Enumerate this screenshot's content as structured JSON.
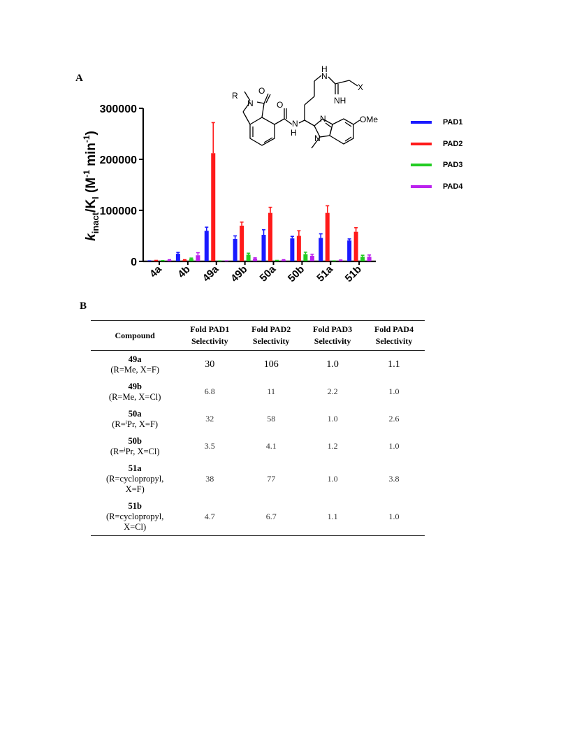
{
  "panels": {
    "a": "A",
    "b": "B"
  },
  "chart_data": {
    "type": "bar",
    "categories": [
      "4a",
      "4b",
      "49a",
      "49b",
      "50a",
      "50b",
      "51a",
      "51b"
    ],
    "ylabel": "kinact/KI (M-1 min-1)",
    "ylabel_parts": {
      "k": "k",
      "inact": "inact",
      "slash": "/K",
      "i": "I",
      "open": " (M",
      "exp1": "-1",
      "min": " min",
      "exp2": "-1",
      "close": ")"
    },
    "ylim": [
      0,
      300000
    ],
    "yticks": [
      0,
      100000,
      200000,
      300000
    ],
    "ytick_labels": [
      "0",
      "100000",
      "200000",
      "300000"
    ],
    "legend_position": "right",
    "series": [
      {
        "name": "PAD1",
        "color": "#1a1aff",
        "values": [
          800,
          15000,
          60000,
          44000,
          52000,
          45000,
          46000,
          41000
        ],
        "errors": [
          300,
          2500,
          7000,
          6000,
          10000,
          4000,
          8000,
          3000
        ]
      },
      {
        "name": "PAD2",
        "color": "#ff1a1a",
        "values": [
          1500,
          2500,
          212000,
          70000,
          95000,
          50000,
          95000,
          58000
        ],
        "errors": [
          500,
          800,
          60000,
          7000,
          11000,
          10000,
          14000,
          8000
        ]
      },
      {
        "name": "PAD3",
        "color": "#22cc22",
        "values": [
          1200,
          5000,
          700,
          13000,
          1500,
          14000,
          700,
          9000
        ],
        "errors": [
          400,
          1500,
          300,
          3000,
          500,
          4000,
          300,
          3000
        ]
      },
      {
        "name": "PAD4",
        "color": "#bb22ee",
        "values": [
          2500,
          12000,
          700,
          5500,
          2500,
          11000,
          2000,
          9000
        ],
        "errors": [
          800,
          5000,
          300,
          1500,
          800,
          3000,
          700,
          3500
        ]
      }
    ]
  },
  "structure": {
    "labels": {
      "r": "R",
      "o1": "O",
      "o2": "O",
      "n_ring": "N",
      "nh_amide_n": "N",
      "nh_amide_h": "H",
      "n_imid_top": "N",
      "n_imid_bottom": "N",
      "ome": "OMe",
      "nh_top_n": "N",
      "nh_top_h": "H",
      "x": "X",
      "nh_imine": "NH"
    }
  },
  "table": {
    "headers": [
      {
        "line1": "Compound",
        "line2": ""
      },
      {
        "line1": "Fold PAD1",
        "line2": "Selectivity"
      },
      {
        "line1": "Fold PAD2",
        "line2": "Selectivity"
      },
      {
        "line1": "Fold PAD3",
        "line2": "Selectivity"
      },
      {
        "line1": "Fold PAD4",
        "line2": "Selectivity"
      }
    ],
    "rows": [
      {
        "name": "49a",
        "desc1": "(R=Me, X=F)",
        "desc2": "",
        "values": [
          "30",
          "106",
          "1.0",
          "1.1"
        ]
      },
      {
        "name": "49b",
        "desc1": "(R=Me, X=Cl)",
        "desc2": "",
        "values": [
          "6.8",
          "11",
          "2.2",
          "1.0"
        ]
      },
      {
        "name": "50a",
        "desc1": "(R=ⁱPr, X=F)",
        "desc2": "",
        "values": [
          "32",
          "58",
          "1.0",
          "2.6"
        ]
      },
      {
        "name": "50b",
        "desc1": "(R=ⁱPr, X=Cl)",
        "desc2": "",
        "values": [
          "3.5",
          "4.1",
          "1.2",
          "1.0"
        ]
      },
      {
        "name": "51a",
        "desc1": "(R=cyclopropyl,",
        "desc2": "X=F)",
        "values": [
          "38",
          "77",
          "1.0",
          "3.8"
        ]
      },
      {
        "name": "51b",
        "desc1": "(R=cyclopropyl,",
        "desc2": "X=Cl)",
        "values": [
          "4.7",
          "6.7",
          "1.1",
          "1.0"
        ]
      }
    ]
  }
}
